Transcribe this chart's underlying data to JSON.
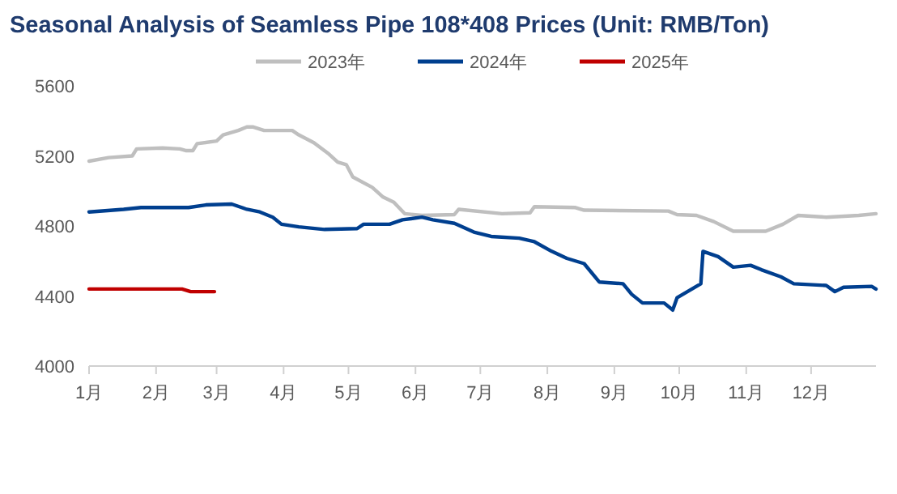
{
  "chart_data": {
    "type": "line",
    "title": "Seasonal Analysis of Seamless Pipe 108*408 Prices (Unit: RMB/Ton)",
    "legend": "top",
    "xlim": [
      "--01-01",
      "--12-31"
    ],
    "xticks": [
      {
        "value": "--01-01",
        "label": "1月"
      },
      {
        "value": "--02-01",
        "label": "2月"
      },
      {
        "value": "--03-01",
        "label": "3月"
      },
      {
        "value": "--04-01",
        "label": "4月"
      },
      {
        "value": "--05-01",
        "label": "5月"
      },
      {
        "value": "--06-01",
        "label": "6月"
      },
      {
        "value": "--07-01",
        "label": "7月"
      },
      {
        "value": "--08-01",
        "label": "8月"
      },
      {
        "value": "--09-01",
        "label": "9月"
      },
      {
        "value": "--10-01",
        "label": "10月"
      },
      {
        "value": "--11-01",
        "label": "11月"
      },
      {
        "value": "--12-01",
        "label": "12月"
      }
    ],
    "ylim": [
      4000,
      5600
    ],
    "yticks": [
      4000,
      4400,
      4800,
      5200,
      5600
    ],
    "series": [
      {
        "name": "2023年",
        "color": "#bfbfbf",
        "x": [
          "--01-01",
          "--01-10",
          "--01-21",
          "--01-23",
          "--02-04",
          "--02-12",
          "--02-15",
          "--02-18",
          "--02-20",
          "--03-01",
          "--03-04",
          "--03-11",
          "--03-15",
          "--03-18",
          "--03-23",
          "--04-05",
          "--04-08",
          "--04-15",
          "--04-22",
          "--04-26",
          "--04-30",
          "--05-03",
          "--05-12",
          "--05-17",
          "--05-22",
          "--05-27",
          "--06-04",
          "--06-19",
          "--06-21",
          "--07-11",
          "--07-24",
          "--07-26",
          "--08-14",
          "--08-18",
          "--09-26",
          "--09-30",
          "--10-09",
          "--10-17",
          "--10-26",
          "--11-10",
          "--11-18",
          "--11-25",
          "--12-08",
          "--12-23",
          "--12-31"
        ],
        "values": [
          5170,
          5190,
          5200,
          5240,
          5245,
          5240,
          5230,
          5230,
          5270,
          5285,
          5320,
          5345,
          5365,
          5365,
          5345,
          5345,
          5320,
          5275,
          5210,
          5165,
          5150,
          5080,
          5020,
          4965,
          4935,
          4870,
          4860,
          4865,
          4895,
          4870,
          4875,
          4910,
          4905,
          4890,
          4885,
          4865,
          4860,
          4825,
          4770,
          4770,
          4810,
          4860,
          4850,
          4860,
          4870
        ]
      },
      {
        "name": "2024年",
        "color": "#003f8f",
        "x": [
          "--01-01",
          "--01-17",
          "--01-25",
          "--02-16",
          "--02-24",
          "--03-08",
          "--03-15",
          "--03-21",
          "--03-27",
          "--03-31",
          "--04-08",
          "--04-20",
          "--05-05",
          "--05-08",
          "--05-20",
          "--05-26",
          "--06-04",
          "--06-09",
          "--06-19",
          "--06-28",
          "--07-06",
          "--07-19",
          "--07-26",
          "--08-03",
          "--08-10",
          "--08-18",
          "--08-25",
          "--09-05",
          "--09-09",
          "--09-14",
          "--09-24",
          "--09-28",
          "--09-30",
          "--10-11",
          "--10-12",
          "--10-19",
          "--10-26",
          "--11-03",
          "--11-08",
          "--11-17",
          "--11-23",
          "--12-08",
          "--12-12",
          "--12-16",
          "--12-29",
          "--12-31"
        ],
        "values": [
          4880,
          4895,
          4905,
          4905,
          4920,
          4925,
          4895,
          4880,
          4850,
          4810,
          4795,
          4780,
          4785,
          4810,
          4810,
          4835,
          4850,
          4835,
          4815,
          4765,
          4740,
          4730,
          4710,
          4655,
          4615,
          4585,
          4480,
          4470,
          4410,
          4360,
          4360,
          4320,
          4390,
          4470,
          4655,
          4625,
          4565,
          4575,
          4550,
          4510,
          4470,
          4460,
          4425,
          4450,
          4455,
          4440
        ]
      },
      {
        "name": "2025年",
        "color": "#c00000",
        "x": [
          "--01-01",
          "--02-13",
          "--02-17",
          "--02-28"
        ],
        "values": [
          4440,
          4440,
          4425,
          4425
        ]
      }
    ]
  }
}
